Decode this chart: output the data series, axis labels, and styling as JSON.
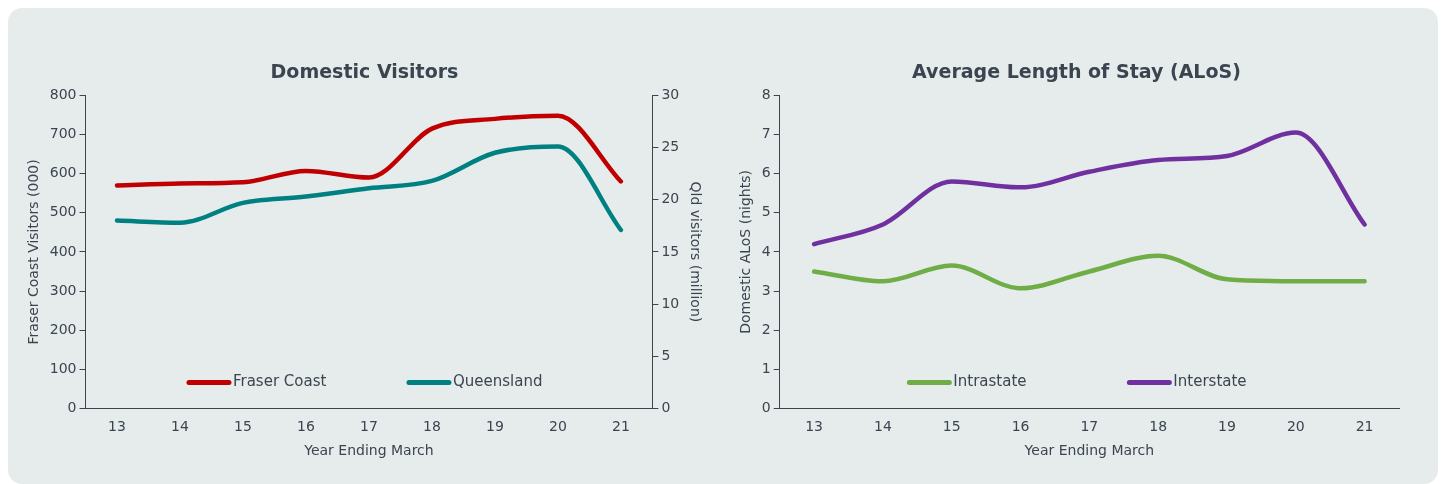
{
  "chart_data": [
    {
      "type": "line",
      "title": "Domestic Visitors",
      "xlabel": "Year Ending March",
      "ylabel": "Fraser Coast Visitors (000)",
      "y2label": "Qld visitors (million)",
      "categories": [
        "13",
        "14",
        "15",
        "16",
        "17",
        "18",
        "19",
        "20",
        "21"
      ],
      "series": [
        {
          "name": "Fraser Coast",
          "color": "#c00000",
          "values": [
            570,
            575,
            578,
            607,
            590,
            715,
            740,
            748,
            580
          ]
        },
        {
          "name": "Queensland",
          "color": "#008080",
          "axis": "y2",
          "values": [
            18.0,
            17.8,
            19.7,
            20.3,
            21.1,
            21.8,
            24.5,
            25.1,
            17.1
          ]
        }
      ],
      "ylim": [
        0,
        800
      ],
      "yticks": [
        0,
        100,
        200,
        300,
        400,
        500,
        600,
        700,
        800
      ],
      "y2lim": [
        0,
        30
      ],
      "y2ticks": [
        0,
        5,
        10,
        15,
        20,
        25,
        30
      ],
      "grid": false,
      "legend": "bottom",
      "marker": "none",
      "line_style": "solid"
    },
    {
      "type": "line",
      "title": "Average Length of Stay (ALoS)",
      "xlabel": "Year Ending March",
      "ylabel": "Domestic ALoS (nights)",
      "categories": [
        "13",
        "14",
        "15",
        "16",
        "17",
        "18",
        "19",
        "20",
        "21"
      ],
      "series": [
        {
          "name": "Intrastate",
          "color": "#70ad47",
          "values": [
            3.5,
            3.25,
            3.65,
            3.07,
            3.5,
            3.9,
            3.3,
            3.25,
            3.25
          ]
        },
        {
          "name": "Interstate",
          "color": "#7030a0",
          "values": [
            4.2,
            4.7,
            5.8,
            5.65,
            6.05,
            6.35,
            6.45,
            7.05,
            4.7
          ]
        }
      ],
      "ylim": [
        0,
        8
      ],
      "yticks": [
        0,
        1,
        2,
        3,
        4,
        5,
        6,
        7,
        8
      ],
      "grid": false,
      "legend": "bottom",
      "marker": "none",
      "line_style": "solid"
    }
  ]
}
